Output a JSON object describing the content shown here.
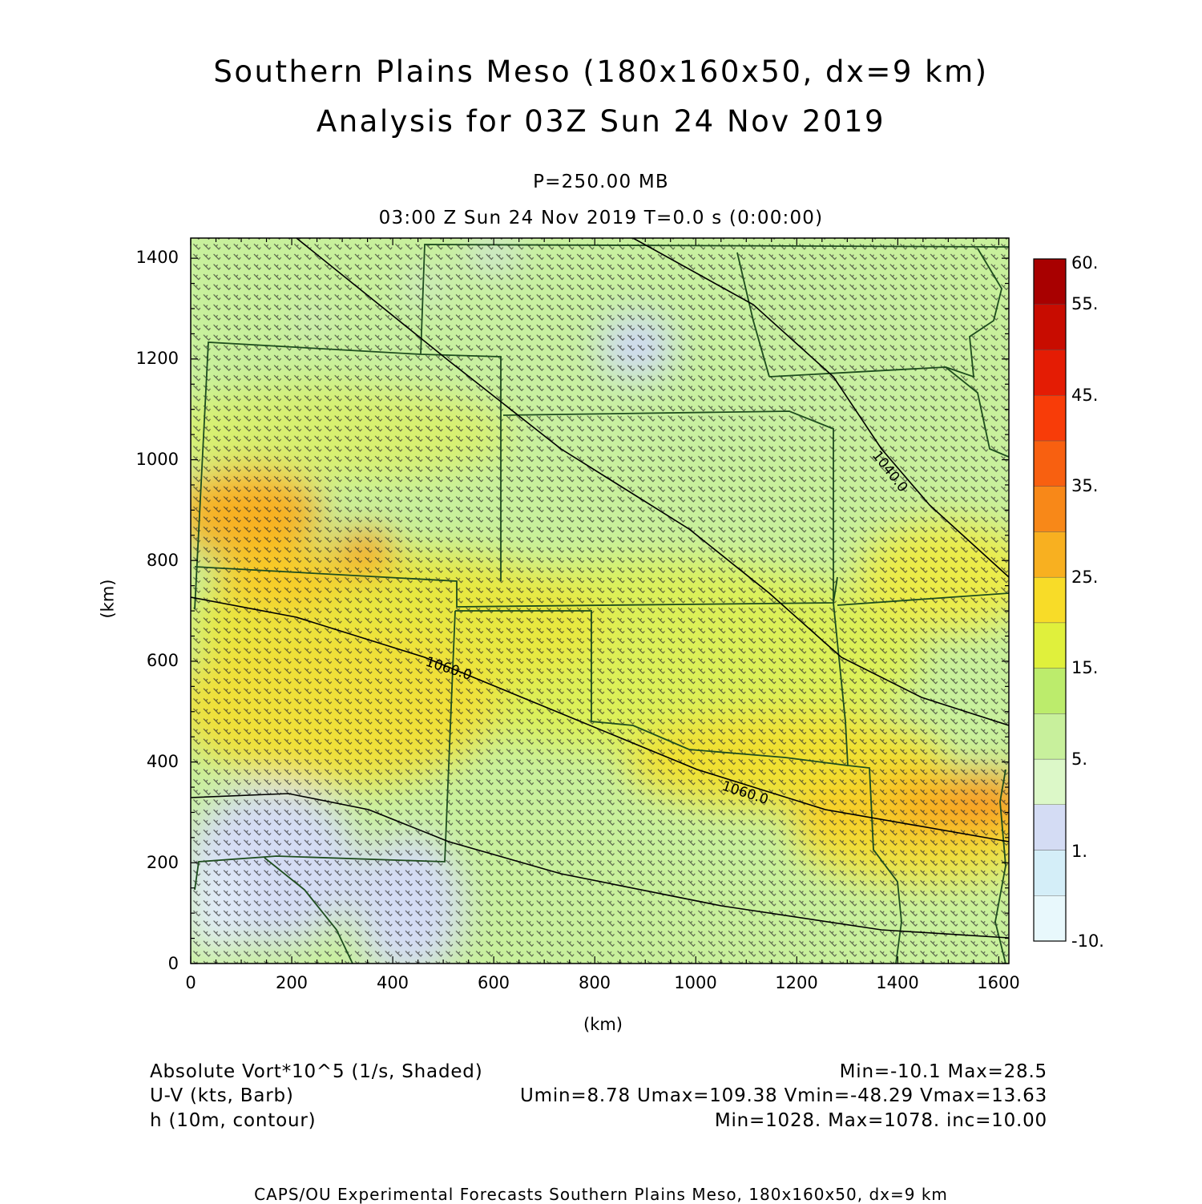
{
  "header": {
    "title_line1": "Southern Plains Meso (180x160x50, dx=9 km)",
    "title_line2": "Analysis for 03Z Sun 24 Nov 2019",
    "level": "P=250.00 MB",
    "time": "03:00 Z Sun 24 Nov 2019   T=0.0 s (0:00:00)"
  },
  "axes": {
    "x_label": "(km)",
    "y_label": "(km)",
    "x_ticks": [
      "0",
      "200",
      "400",
      "600",
      "800",
      "1000",
      "1200",
      "1400",
      "1600"
    ],
    "y_ticks": [
      "0",
      "200",
      "400",
      "600",
      "800",
      "1000",
      "1200",
      "1400"
    ],
    "x_range": [
      0,
      1620
    ],
    "y_range": [
      0,
      1440
    ]
  },
  "colorbar": {
    "labels": [
      "60.",
      "55.",
      "45.",
      "35.",
      "25.",
      "15.",
      "5.",
      "1.",
      "-10."
    ],
    "colors": [
      "#e8f8fc",
      "#d4eef8",
      "#d4dcf4",
      "#dcf8c8",
      "#c8f09c",
      "#bcec6c",
      "#e0f03c",
      "#f8dc28",
      "#f8b020",
      "#f88818",
      "#f86010",
      "#f83c08",
      "#e41c04",
      "#c80c00",
      "#a80000"
    ]
  },
  "contours": {
    "labels": [
      "1040.0",
      "1060.0",
      "1060.0"
    ]
  },
  "info": {
    "field1_name": "Absolute Vort*10^5 (1/s, Shaded)",
    "field1_stats": "Min=-10.1 Max=28.5",
    "field2_name": "U-V (kts, Barb)",
    "field2_stats": "Umin=8.78 Umax=109.38 Vmin=-48.29 Vmax=13.63",
    "field3_name": "h (10m, contour)",
    "field3_stats": "Min=1028. Max=1078. inc=10.00"
  },
  "footer": {
    "credit": "CAPS/OU Experimental Forecasts  Southern Plains Meso, 180x160x50, dx=9 km"
  }
}
